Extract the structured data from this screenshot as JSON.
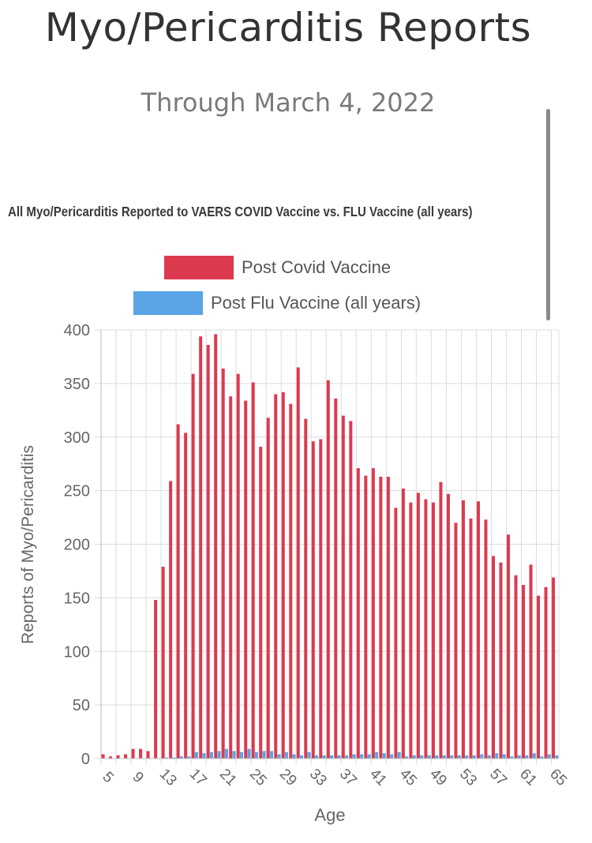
{
  "page": {
    "title": "Myo/Pericarditis Reports",
    "subtitle": "Through March 4, 2022"
  },
  "chart_data": {
    "type": "bar",
    "title": "All Myo/Pericarditis Reported to VAERS COVID Vaccine vs. FLU Vaccine (all years)",
    "xlabel": "Age",
    "ylabel": "Reports of Myo/Pericarditis",
    "ylim": [
      0,
      400
    ],
    "yticks": [
      "0",
      "50",
      "100",
      "150",
      "200",
      "250",
      "300",
      "350",
      "400"
    ],
    "categories": [
      "5",
      "6",
      "7",
      "8",
      "9",
      "10",
      "11",
      "12",
      "13",
      "14",
      "15",
      "16",
      "17",
      "18",
      "19",
      "20",
      "21",
      "22",
      "23",
      "24",
      "25",
      "26",
      "27",
      "28",
      "29",
      "30",
      "31",
      "32",
      "33",
      "34",
      "35",
      "36",
      "37",
      "38",
      "39",
      "40",
      "41",
      "42",
      "43",
      "44",
      "45",
      "46",
      "47",
      "48",
      "49",
      "50",
      "51",
      "52",
      "53",
      "54",
      "55",
      "56",
      "57",
      "58",
      "59",
      "60",
      "61",
      "62",
      "63",
      "64",
      "65"
    ],
    "xtick_labels": [
      "5",
      "9",
      "13",
      "17",
      "21",
      "25",
      "29",
      "33",
      "37",
      "41",
      "45",
      "49",
      "53",
      "57",
      "61",
      "65"
    ],
    "legend_position": "top-center",
    "grid": true,
    "series": [
      {
        "name": "Post Covid Vaccine",
        "color": "#dc3a4e",
        "values": [
          4,
          2,
          3,
          4,
          9,
          9,
          7,
          148,
          179,
          259,
          312,
          304,
          359,
          394,
          386,
          396,
          364,
          338,
          359,
          334,
          351,
          291,
          318,
          340,
          342,
          331,
          365,
          317,
          296,
          298,
          353,
          336,
          320,
          315,
          271,
          264,
          271,
          263,
          263,
          234,
          252,
          239,
          248,
          242,
          239,
          258,
          247,
          220,
          241,
          224,
          240,
          223,
          189,
          183,
          209,
          171,
          162,
          181,
          152,
          160,
          169
        ]
      },
      {
        "name": "Post Flu Vaccine (all years)",
        "color": "#5aa4e6",
        "values": [
          0,
          0,
          0,
          0,
          0,
          0,
          0,
          0,
          1,
          1,
          2,
          2,
          6,
          5,
          6,
          7,
          9,
          7,
          6,
          9,
          6,
          7,
          7,
          4,
          6,
          4,
          3,
          6,
          3,
          3,
          3,
          3,
          3,
          4,
          4,
          4,
          6,
          5,
          4,
          6,
          2,
          3,
          3,
          3,
          3,
          3,
          3,
          3,
          3,
          3,
          4,
          3,
          5,
          4,
          2,
          3,
          3,
          5,
          2,
          4,
          3
        ]
      }
    ]
  }
}
